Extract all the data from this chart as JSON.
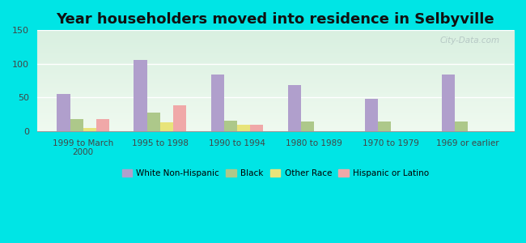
{
  "title": "Year householders moved into residence in Selbyville",
  "categories": [
    "1999 to March\n2000",
    "1995 to 1998",
    "1990 to 1994",
    "1980 to 1989",
    "1970 to 1979",
    "1969 or earlier"
  ],
  "series": {
    "White Non-Hispanic": [
      55,
      106,
      84,
      68,
      48,
      84
    ],
    "Black": [
      18,
      28,
      15,
      14,
      14,
      14
    ],
    "Other Race": [
      5,
      13,
      9,
      0,
      0,
      0
    ],
    "Hispanic or Latino": [
      18,
      38,
      10,
      0,
      0,
      0
    ]
  },
  "colors": {
    "White Non-Hispanic": "#b09fcc",
    "Black": "#adc88a",
    "Other Race": "#e8e47a",
    "Hispanic or Latino": "#f0a8a8"
  },
  "ylim": [
    0,
    150
  ],
  "yticks": [
    0,
    50,
    100,
    150
  ],
  "outer_bg": "#00e5e5",
  "plot_bg_top": "#d8ede0",
  "plot_bg_bottom": "#f0faf0",
  "watermark": "City-Data.com",
  "bar_width": 0.17,
  "title_fontsize": 13
}
